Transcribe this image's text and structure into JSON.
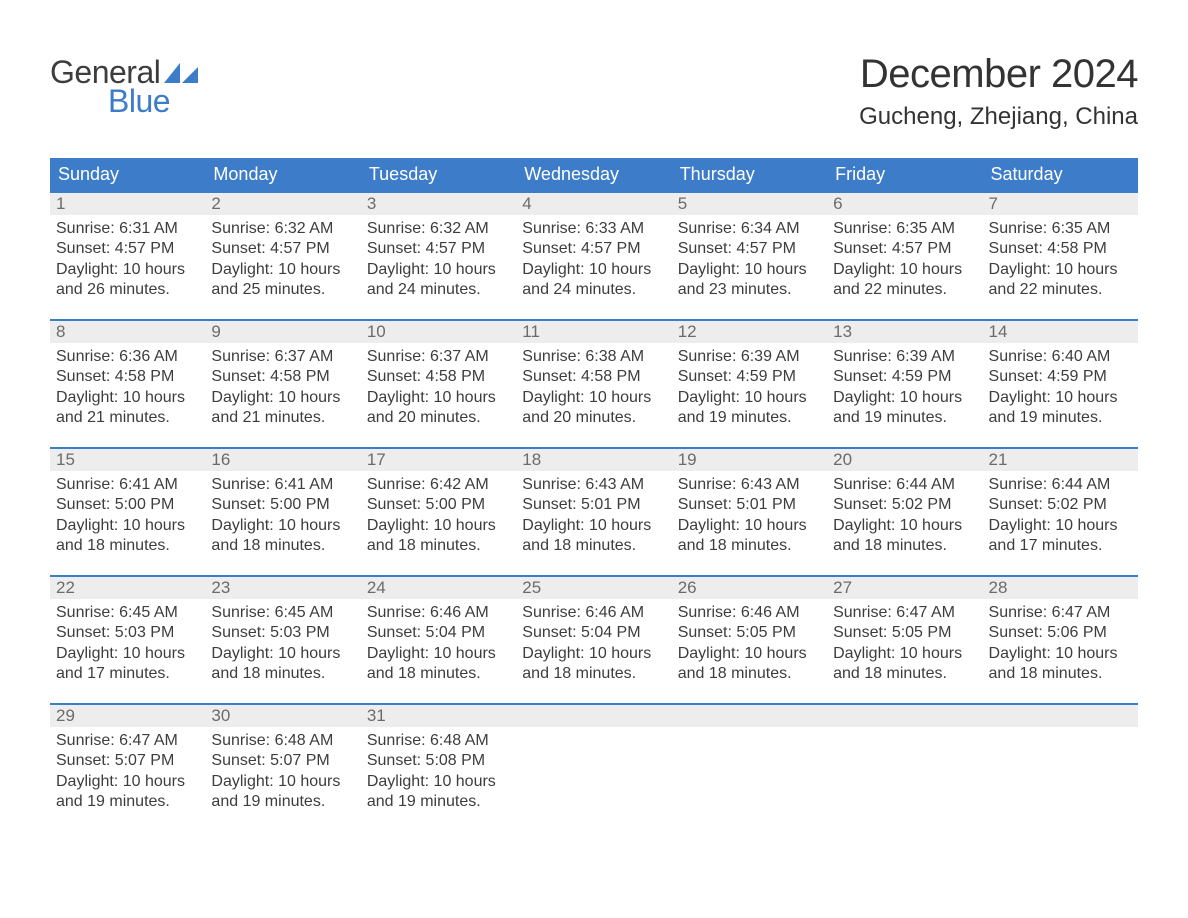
{
  "brand": {
    "text_general": "General",
    "text_blue": "Blue",
    "colors": {
      "general": "#3d3d3d",
      "blue": "#3d7cc9",
      "sail": "#3d7cc9"
    }
  },
  "header": {
    "month_title": "December 2024",
    "location": "Gucheng, Zhejiang, China"
  },
  "styling": {
    "header_bg": "#3d7cc9",
    "header_text": "#ffffff",
    "daynum_bg": "#ededed",
    "daynum_border_top": "#3d7cc9",
    "daynum_text": "#6b6b6b",
    "body_text": "#3d3d3d",
    "page_bg": "#ffffff",
    "font_family": "Arial",
    "title_fontsize_pt": 30,
    "location_fontsize_pt": 18,
    "dayheader_fontsize_pt": 14,
    "daynum_fontsize_pt": 13,
    "content_fontsize_pt": 12
  },
  "calendar": {
    "columns": [
      "Sunday",
      "Monday",
      "Tuesday",
      "Wednesday",
      "Thursday",
      "Friday",
      "Saturday"
    ],
    "weeks": [
      [
        {
          "day": "1",
          "sunrise": "Sunrise: 6:31 AM",
          "sunset": "Sunset: 4:57 PM",
          "daylight1": "Daylight: 10 hours",
          "daylight2": "and 26 minutes."
        },
        {
          "day": "2",
          "sunrise": "Sunrise: 6:32 AM",
          "sunset": "Sunset: 4:57 PM",
          "daylight1": "Daylight: 10 hours",
          "daylight2": "and 25 minutes."
        },
        {
          "day": "3",
          "sunrise": "Sunrise: 6:32 AM",
          "sunset": "Sunset: 4:57 PM",
          "daylight1": "Daylight: 10 hours",
          "daylight2": "and 24 minutes."
        },
        {
          "day": "4",
          "sunrise": "Sunrise: 6:33 AM",
          "sunset": "Sunset: 4:57 PM",
          "daylight1": "Daylight: 10 hours",
          "daylight2": "and 24 minutes."
        },
        {
          "day": "5",
          "sunrise": "Sunrise: 6:34 AM",
          "sunset": "Sunset: 4:57 PM",
          "daylight1": "Daylight: 10 hours",
          "daylight2": "and 23 minutes."
        },
        {
          "day": "6",
          "sunrise": "Sunrise: 6:35 AM",
          "sunset": "Sunset: 4:57 PM",
          "daylight1": "Daylight: 10 hours",
          "daylight2": "and 22 minutes."
        },
        {
          "day": "7",
          "sunrise": "Sunrise: 6:35 AM",
          "sunset": "Sunset: 4:58 PM",
          "daylight1": "Daylight: 10 hours",
          "daylight2": "and 22 minutes."
        }
      ],
      [
        {
          "day": "8",
          "sunrise": "Sunrise: 6:36 AM",
          "sunset": "Sunset: 4:58 PM",
          "daylight1": "Daylight: 10 hours",
          "daylight2": "and 21 minutes."
        },
        {
          "day": "9",
          "sunrise": "Sunrise: 6:37 AM",
          "sunset": "Sunset: 4:58 PM",
          "daylight1": "Daylight: 10 hours",
          "daylight2": "and 21 minutes."
        },
        {
          "day": "10",
          "sunrise": "Sunrise: 6:37 AM",
          "sunset": "Sunset: 4:58 PM",
          "daylight1": "Daylight: 10 hours",
          "daylight2": "and 20 minutes."
        },
        {
          "day": "11",
          "sunrise": "Sunrise: 6:38 AM",
          "sunset": "Sunset: 4:58 PM",
          "daylight1": "Daylight: 10 hours",
          "daylight2": "and 20 minutes."
        },
        {
          "day": "12",
          "sunrise": "Sunrise: 6:39 AM",
          "sunset": "Sunset: 4:59 PM",
          "daylight1": "Daylight: 10 hours",
          "daylight2": "and 19 minutes."
        },
        {
          "day": "13",
          "sunrise": "Sunrise: 6:39 AM",
          "sunset": "Sunset: 4:59 PM",
          "daylight1": "Daylight: 10 hours",
          "daylight2": "and 19 minutes."
        },
        {
          "day": "14",
          "sunrise": "Sunrise: 6:40 AM",
          "sunset": "Sunset: 4:59 PM",
          "daylight1": "Daylight: 10 hours",
          "daylight2": "and 19 minutes."
        }
      ],
      [
        {
          "day": "15",
          "sunrise": "Sunrise: 6:41 AM",
          "sunset": "Sunset: 5:00 PM",
          "daylight1": "Daylight: 10 hours",
          "daylight2": "and 18 minutes."
        },
        {
          "day": "16",
          "sunrise": "Sunrise: 6:41 AM",
          "sunset": "Sunset: 5:00 PM",
          "daylight1": "Daylight: 10 hours",
          "daylight2": "and 18 minutes."
        },
        {
          "day": "17",
          "sunrise": "Sunrise: 6:42 AM",
          "sunset": "Sunset: 5:00 PM",
          "daylight1": "Daylight: 10 hours",
          "daylight2": "and 18 minutes."
        },
        {
          "day": "18",
          "sunrise": "Sunrise: 6:43 AM",
          "sunset": "Sunset: 5:01 PM",
          "daylight1": "Daylight: 10 hours",
          "daylight2": "and 18 minutes."
        },
        {
          "day": "19",
          "sunrise": "Sunrise: 6:43 AM",
          "sunset": "Sunset: 5:01 PM",
          "daylight1": "Daylight: 10 hours",
          "daylight2": "and 18 minutes."
        },
        {
          "day": "20",
          "sunrise": "Sunrise: 6:44 AM",
          "sunset": "Sunset: 5:02 PM",
          "daylight1": "Daylight: 10 hours",
          "daylight2": "and 18 minutes."
        },
        {
          "day": "21",
          "sunrise": "Sunrise: 6:44 AM",
          "sunset": "Sunset: 5:02 PM",
          "daylight1": "Daylight: 10 hours",
          "daylight2": "and 17 minutes."
        }
      ],
      [
        {
          "day": "22",
          "sunrise": "Sunrise: 6:45 AM",
          "sunset": "Sunset: 5:03 PM",
          "daylight1": "Daylight: 10 hours",
          "daylight2": "and 17 minutes."
        },
        {
          "day": "23",
          "sunrise": "Sunrise: 6:45 AM",
          "sunset": "Sunset: 5:03 PM",
          "daylight1": "Daylight: 10 hours",
          "daylight2": "and 18 minutes."
        },
        {
          "day": "24",
          "sunrise": "Sunrise: 6:46 AM",
          "sunset": "Sunset: 5:04 PM",
          "daylight1": "Daylight: 10 hours",
          "daylight2": "and 18 minutes."
        },
        {
          "day": "25",
          "sunrise": "Sunrise: 6:46 AM",
          "sunset": "Sunset: 5:04 PM",
          "daylight1": "Daylight: 10 hours",
          "daylight2": "and 18 minutes."
        },
        {
          "day": "26",
          "sunrise": "Sunrise: 6:46 AM",
          "sunset": "Sunset: 5:05 PM",
          "daylight1": "Daylight: 10 hours",
          "daylight2": "and 18 minutes."
        },
        {
          "day": "27",
          "sunrise": "Sunrise: 6:47 AM",
          "sunset": "Sunset: 5:05 PM",
          "daylight1": "Daylight: 10 hours",
          "daylight2": "and 18 minutes."
        },
        {
          "day": "28",
          "sunrise": "Sunrise: 6:47 AM",
          "sunset": "Sunset: 5:06 PM",
          "daylight1": "Daylight: 10 hours",
          "daylight2": "and 18 minutes."
        }
      ],
      [
        {
          "day": "29",
          "sunrise": "Sunrise: 6:47 AM",
          "sunset": "Sunset: 5:07 PM",
          "daylight1": "Daylight: 10 hours",
          "daylight2": "and 19 minutes."
        },
        {
          "day": "30",
          "sunrise": "Sunrise: 6:48 AM",
          "sunset": "Sunset: 5:07 PM",
          "daylight1": "Daylight: 10 hours",
          "daylight2": "and 19 minutes."
        },
        {
          "day": "31",
          "sunrise": "Sunrise: 6:48 AM",
          "sunset": "Sunset: 5:08 PM",
          "daylight1": "Daylight: 10 hours",
          "daylight2": "and 19 minutes."
        },
        {
          "day": "",
          "sunrise": "",
          "sunset": "",
          "daylight1": "",
          "daylight2": ""
        },
        {
          "day": "",
          "sunrise": "",
          "sunset": "",
          "daylight1": "",
          "daylight2": ""
        },
        {
          "day": "",
          "sunrise": "",
          "sunset": "",
          "daylight1": "",
          "daylight2": ""
        },
        {
          "day": "",
          "sunrise": "",
          "sunset": "",
          "daylight1": "",
          "daylight2": ""
        }
      ]
    ]
  }
}
